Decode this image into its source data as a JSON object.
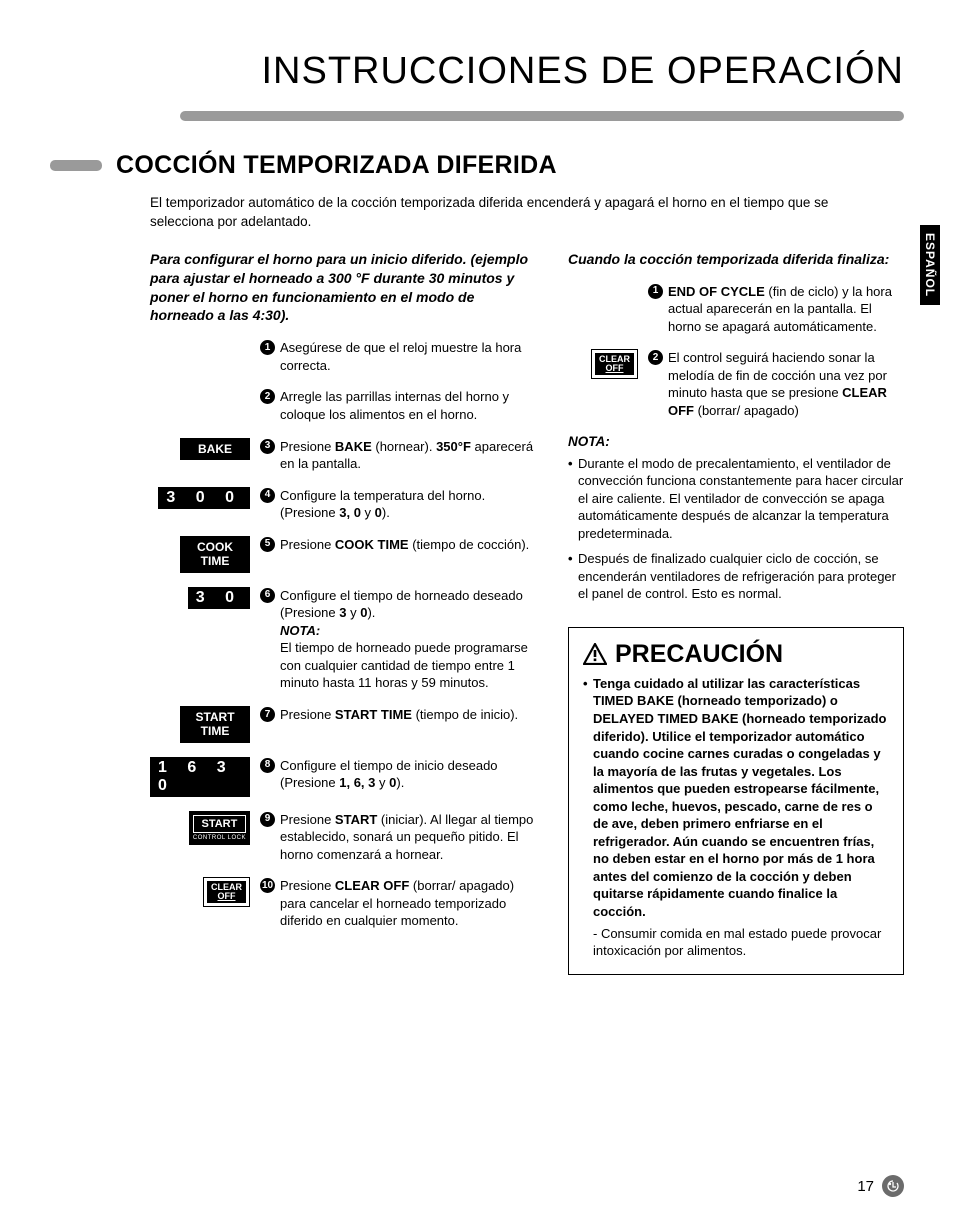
{
  "page": {
    "main_title": "INSTRUCCIONES DE OPERACIÓN",
    "section_title": "COCCIÓN TEMPORIZADA DIFERIDA",
    "intro": "El temporizador automático de la cocción temporizada diferida encenderá y apagará el horno en el tiempo que se selecciona por adelantado.",
    "side_tab": "ESPAÑOL",
    "page_number": "17"
  },
  "left": {
    "heading": "Para configurar el horno para un inicio diferido. (ejemplo para ajustar el horneado a 300 °F durante 30 minutos y poner el horno en funcionamiento en el modo de horneado a las 4:30).",
    "steps": [
      {
        "n": "1",
        "icon_type": "none",
        "icon": "",
        "text": "Asegúrese de que el reloj muestre la hora correcta."
      },
      {
        "n": "2",
        "icon_type": "none",
        "icon": "",
        "text": "Arregle las parrillas internas del horno y coloque los alimentos en el horno."
      },
      {
        "n": "3",
        "icon_type": "black",
        "icon": "BAKE",
        "text": "Presione <b>BAKE</b> (hornear). <b>350°F</b> aparecerá en la pantalla."
      },
      {
        "n": "4",
        "icon_type": "digits",
        "icon": "3 0 0",
        "text": "Configure la temperatura del horno. (Presione <b>3, 0</b> y <b>0</b>)."
      },
      {
        "n": "5",
        "icon_type": "black",
        "icon": "COOK<br>TIME",
        "text": "Presione <b>COOK TIME</b> (tiempo de cocción)."
      },
      {
        "n": "6",
        "icon_type": "digits",
        "icon": "3 0",
        "text": "Configure el tiempo de horneado deseado (Presione <b>3</b> y <b>0</b>).<br><b><i>NOTA:</i></b><br>El tiempo de horneado puede programarse con cualquier cantidad de tiempo entre 1 minuto hasta 11 horas y 59 minutos."
      },
      {
        "n": "7",
        "icon_type": "black",
        "icon": "START<br>TIME",
        "text": "Presione <b>START TIME</b> (tiempo de inicio)."
      },
      {
        "n": "8",
        "icon_type": "digits",
        "icon": "1 6 3 0",
        "text": "Configure el tiempo de inicio deseado (Presione <b>1, 6, 3</b> y <b>0</b>)."
      },
      {
        "n": "9",
        "icon_type": "outline",
        "icon": "START",
        "icon_sub": "CONTROL LOCK",
        "text": "Presione <b>START</b> (iniciar). Al llegar al tiempo establecido, sonará un pequeño pitido. El horno comenzará a hornear."
      },
      {
        "n": "10",
        "icon_type": "clearoff",
        "icon": "CLEAR|OFF",
        "text": "Presione <b>CLEAR OFF</b> (borrar/ apagado) para cancelar el horneado temporizado diferido en cualquier momento."
      }
    ]
  },
  "right": {
    "heading": "Cuando la cocción temporizada diferida finaliza:",
    "items": [
      {
        "n": "1",
        "icon_type": "none",
        "text": "<b>END OF CYCLE</b> (fin de ciclo) y la hora actual aparecerán en la pantalla. El horno se apagará automáticamente."
      },
      {
        "n": "2",
        "icon_type": "clearoff",
        "text": "El control seguirá haciendo sonar la melodía de fin de cocción una vez por minuto hasta que se presione <b>CLEAR OFF</b> (borrar/ apagado)"
      }
    ],
    "nota_label": "NOTA:",
    "nota": [
      "Durante el modo de precalentamiento, el ventilador de convección funciona constantemente para hacer circular el aire caliente. El ventilador de convección se apaga automáticamente después de alcanzar la temperatura predeterminada.",
      "Después de finalizado cualquier ciclo de cocción, se encenderán ventiladores de refrigeración para proteger el panel de control. Esto es normal."
    ]
  },
  "caution": {
    "title": "PRECAUCIÓN",
    "lead": "Tenga cuidado al utilizar las características TIMED BAKE (horneado temporizado) o DELAYED TIMED BAKE (horneado temporizado diferido). Utilice el temporizador automático cuando cocine carnes curadas o congeladas y la mayoría de las frutas y vegetales. Los alimentos que pueden estropearse fácilmente, como leche, huevos, pescado, carne de res o de ave, deben primero enfriarse en el refrigerador. Aún cuando se encuentren frías, no deben estar en el horno por más de 1 hora antes del comienzo de la cocción y deben quitarse rápidamente cuando finalice la cocción.",
    "sub": "- Consumir comida en mal estado puede provocar intoxicación por alimentos."
  },
  "colors": {
    "accent_gray": "#9a9a9a",
    "black": "#000000",
    "white": "#ffffff"
  }
}
